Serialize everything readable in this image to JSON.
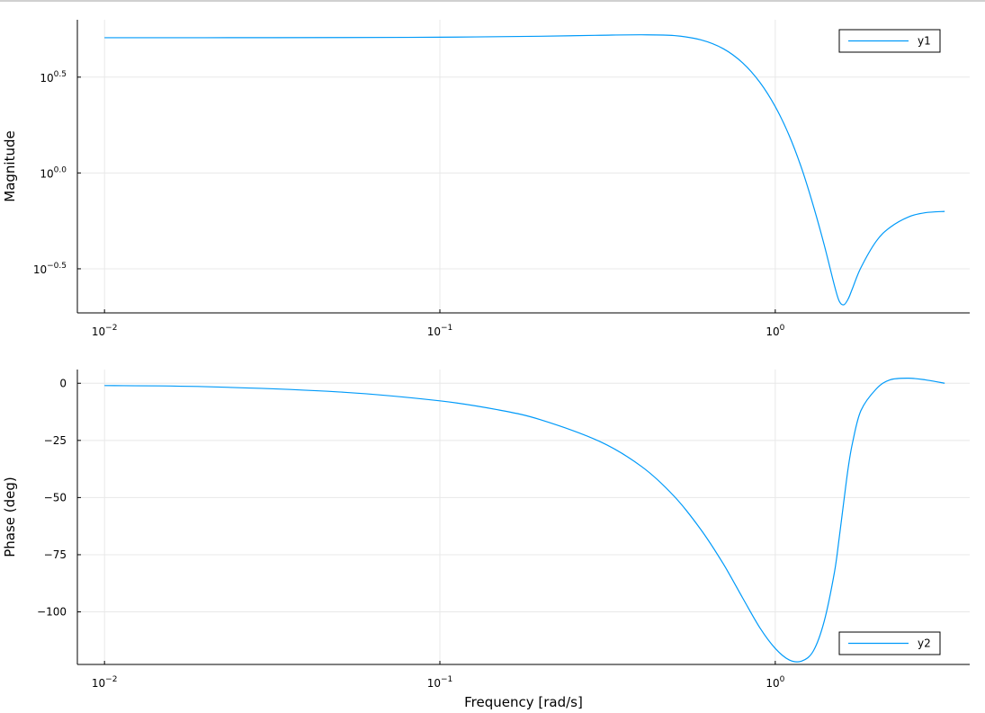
{
  "chart_data": [
    {
      "type": "line",
      "title": "",
      "xlabel": "",
      "ylabel": "Magnitude",
      "x_scale": "log10",
      "y_scale": "log10",
      "xlim": [
        0.0083,
        3.8
      ],
      "ylim": [
        0.186,
        6.3
      ],
      "grid": true,
      "legend_position": "top-right",
      "x_ticks": [
        0.01,
        0.1,
        1
      ],
      "x_tick_labels": [
        [
          "10",
          "−2"
        ],
        [
          "10",
          "−1"
        ],
        [
          "10",
          "0"
        ]
      ],
      "y_ticks": [
        0.316,
        1.0,
        3.162
      ],
      "y_tick_labels": [
        [
          "10",
          "−0.5"
        ],
        [
          "10",
          "0.0"
        ],
        [
          "10",
          "0.5"
        ]
      ],
      "series": [
        {
          "name": "y1",
          "color": "#009AF9",
          "x": [
            0.01,
            0.02,
            0.05,
            0.1,
            0.2,
            0.3,
            0.4,
            0.5,
            0.6,
            0.7,
            0.8,
            0.9,
            1.0,
            1.1,
            1.2,
            1.3,
            1.4,
            1.5,
            1.55,
            1.6,
            1.65,
            1.7,
            1.8,
            2.0,
            2.2,
            2.5,
            2.8,
            3.2
          ],
          "values": [
            5.08,
            5.08,
            5.09,
            5.11,
            5.17,
            5.23,
            5.26,
            5.21,
            4.95,
            4.45,
            3.75,
            2.97,
            2.22,
            1.57,
            1.05,
            0.67,
            0.42,
            0.26,
            0.215,
            0.205,
            0.22,
            0.25,
            0.32,
            0.44,
            0.52,
            0.59,
            0.62,
            0.63
          ]
        }
      ]
    },
    {
      "type": "line",
      "title": "",
      "xlabel": "Frequency [rad/s]",
      "ylabel": "Phase (deg)",
      "x_scale": "log10",
      "y_scale": "linear",
      "xlim": [
        0.0083,
        3.8
      ],
      "ylim": [
        -123,
        6
      ],
      "grid": true,
      "legend_position": "bottom-right",
      "x_ticks": [
        0.01,
        0.1,
        1
      ],
      "x_tick_labels": [
        [
          "10",
          "−2"
        ],
        [
          "10",
          "−1"
        ],
        [
          "10",
          "0"
        ]
      ],
      "y_ticks": [
        0,
        -25,
        -50,
        -75,
        -100
      ],
      "y_tick_labels": [
        "0",
        "−25",
        "−50",
        "−75",
        "−100"
      ],
      "series": [
        {
          "name": "y2",
          "color": "#009AF9",
          "x": [
            0.01,
            0.02,
            0.05,
            0.1,
            0.15,
            0.2,
            0.3,
            0.4,
            0.5,
            0.6,
            0.7,
            0.8,
            0.9,
            1.0,
            1.1,
            1.2,
            1.3,
            1.4,
            1.5,
            1.55,
            1.6,
            1.65,
            1.7,
            1.8,
            2.0,
            2.2,
            2.5,
            2.8,
            3.2
          ],
          "values": [
            -1,
            -1.5,
            -3.8,
            -7.7,
            -11.7,
            -16,
            -25.5,
            -36.5,
            -49.5,
            -64,
            -79,
            -94,
            -107,
            -116,
            -121,
            -121.5,
            -117,
            -104,
            -83,
            -68,
            -52,
            -37,
            -26,
            -12,
            -2.5,
            1.5,
            2.2,
            1.5,
            0
          ]
        }
      ]
    }
  ]
}
